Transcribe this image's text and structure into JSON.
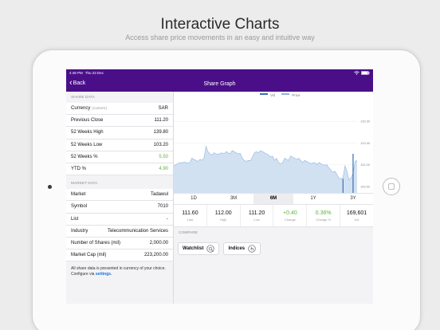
{
  "promo": {
    "title": "Interactive Charts",
    "subtitle": "Access share price movements in an easy and intuitive way"
  },
  "statusbar": {
    "time": "4:48 PM",
    "date": "Thu 23 Dec"
  },
  "navbar": {
    "back_label": "Back",
    "title": "Share Graph"
  },
  "share_data": {
    "header": "SHARE DATA",
    "rows": [
      {
        "label": "Currency",
        "hint": "(custom)",
        "value": "SAR"
      },
      {
        "label": "Previous Close",
        "value": "111.20"
      },
      {
        "label": "52 Weeks High",
        "value": "139.80"
      },
      {
        "label": "52 Weeks Low",
        "value": "103.20"
      },
      {
        "label": "52 Weeks %",
        "value": "5.50"
      },
      {
        "label": "YTD %",
        "value": "4.90"
      }
    ]
  },
  "market_data": {
    "header": "MARKET DATA",
    "rows": [
      {
        "label": "Market",
        "value": "Tadawul"
      },
      {
        "label": "Symbol",
        "value": "7010"
      },
      {
        "label": "List",
        "value": "-"
      },
      {
        "label": "Industry",
        "value": "Telecommunication Services"
      },
      {
        "label": "Number of Shares (mil)",
        "value": "2,000.00"
      },
      {
        "label": "Market Cap (mil)",
        "value": "223,200.00"
      }
    ]
  },
  "footnote": {
    "text": "All share data is presented in currency of your choice. Configure via",
    "link": "settings."
  },
  "chart_data": {
    "type": "area",
    "legend": [
      "Vol",
      "Price"
    ],
    "yticks": [
      "130.00",
      "120.00",
      "110.00",
      "100.00"
    ],
    "ylim": [
      97,
      140
    ],
    "price": [
      109.5,
      110,
      110.5,
      111,
      110.8,
      111.2,
      111,
      110.7,
      111,
      113,
      112.5,
      112,
      111.5,
      112.5,
      112,
      113,
      118.5,
      116,
      115,
      114.5,
      115.5,
      115,
      114.8,
      115.2,
      115.5,
      115,
      116,
      115.5,
      115,
      116.5,
      116,
      115.5,
      115,
      115.2,
      113,
      112,
      111.5,
      112,
      111.8,
      113.5,
      115.5,
      116,
      115.5,
      116.5,
      116,
      115.5,
      115,
      114.5,
      113.5,
      114,
      112,
      113,
      111,
      110.5,
      110.8,
      113,
      112.5,
      112,
      114,
      113.5,
      113,
      112.5,
      113,
      112,
      111,
      112,
      111.5,
      111,
      110.5,
      110.8,
      111,
      110,
      111,
      110.5,
      110,
      109.8,
      110,
      108.5,
      107.5,
      106.5,
      107,
      105.5,
      103.8,
      103.5,
      104,
      109.5,
      107,
      103,
      104,
      106,
      111.5,
      112
    ],
    "volume_spikes": [
      {
        "index": 84,
        "value": 0.15
      },
      {
        "index": 89,
        "value": 0.42
      }
    ]
  },
  "ranges": {
    "tabs": [
      "1D",
      "3M",
      "6M",
      "1Y",
      "3Y"
    ],
    "active": "6M"
  },
  "stats": [
    {
      "value": "111.60",
      "label": "Last"
    },
    {
      "value": "112.00",
      "label": "High"
    },
    {
      "value": "111.20",
      "label": "Low"
    },
    {
      "value": "+0.40",
      "label": "Change"
    },
    {
      "value": "0.36%",
      "label": "Change %"
    },
    {
      "value": "169,601",
      "label": "Vol."
    }
  ],
  "compare": {
    "header": "COMPARE",
    "watchlist_label": "Watchlist",
    "indices_label": "Indices"
  },
  "colors": {
    "brand": "#4a0f88",
    "positive": "#5fb33c",
    "price_line": "#8fb4de",
    "price_fill": "#d2e1f2",
    "volume": "#3b6fb5"
  }
}
